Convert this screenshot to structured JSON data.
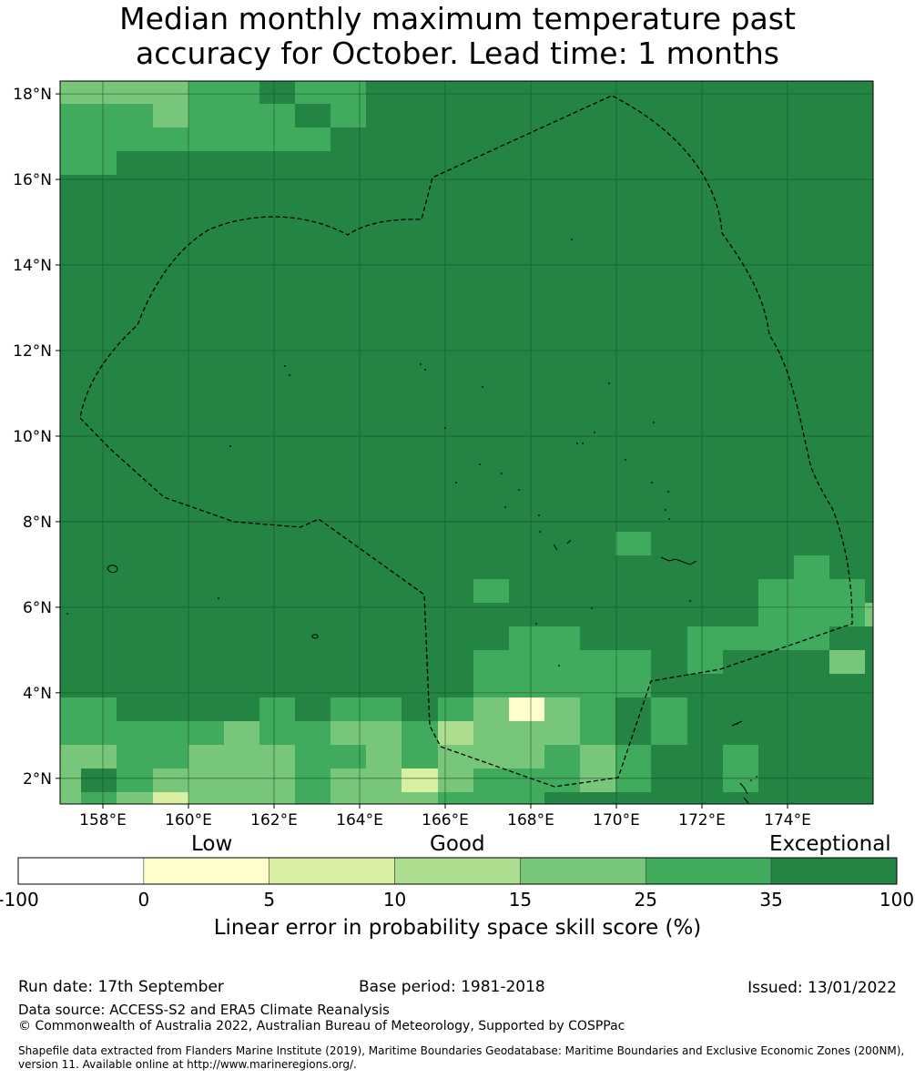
{
  "title_line1": "Median monthly maximum temperature past",
  "title_line2": "accuracy for October. Lead time: 1 months",
  "map": {
    "lon_range": [
      157,
      176
    ],
    "lat_range": [
      1.4,
      18.3
    ],
    "lon_ticks": [
      "158°E",
      "160°E",
      "162°E",
      "164°E",
      "166°E",
      "168°E",
      "170°E",
      "172°E",
      "174°E"
    ],
    "lat_ticks": [
      "2°N",
      "4°N",
      "6°N",
      "8°N",
      "10°N",
      "12°N",
      "14°N",
      "16°N",
      "18°N"
    ],
    "grid_color": "#1a4d2a",
    "background_category_color": "#238443",
    "boundary_style": "dashed"
  },
  "colorbar": {
    "categories": [
      {
        "range": "-100 to 0",
        "color": "#ffffff"
      },
      {
        "range": "0 to 5",
        "color": "#ffffcc"
      },
      {
        "range": "5 to 10",
        "color": "#d9f0a3"
      },
      {
        "range": "10 to 15",
        "color": "#addd8e"
      },
      {
        "range": "15 to 25",
        "color": "#78c679"
      },
      {
        "range": "25 to 35",
        "color": "#41ab5d"
      },
      {
        "range": "35 to 100",
        "color": "#238443"
      }
    ],
    "ticks": [
      "-100",
      "0",
      "5",
      "10",
      "15",
      "25",
      "35",
      "100"
    ],
    "label_low": "Low",
    "label_good": "Good",
    "label_exceptional": "Exceptional",
    "axis_label": "Linear error in probability space skill score (%)"
  },
  "footer": {
    "run_date": "Run date: 17th September",
    "base_period": "Base period: 1981-2018",
    "issued": "Issued: 13/01/2022",
    "data_source": "Data source: ACCESS-S2 and ERA5 Climate Reanalysis",
    "copyright": "© Commonwealth of Australia 2022, Australian Bureau of Meteorology, Supported by COSPPac",
    "shapefile": "Shapefile data extracted from Flanders Marine Institute (2019), Maritime Boundaries Geodatabase: Maritime Boundaries and Exclusive Economic Zones (200NM), version 11. Available online at http://www.marineregions.org/."
  }
}
